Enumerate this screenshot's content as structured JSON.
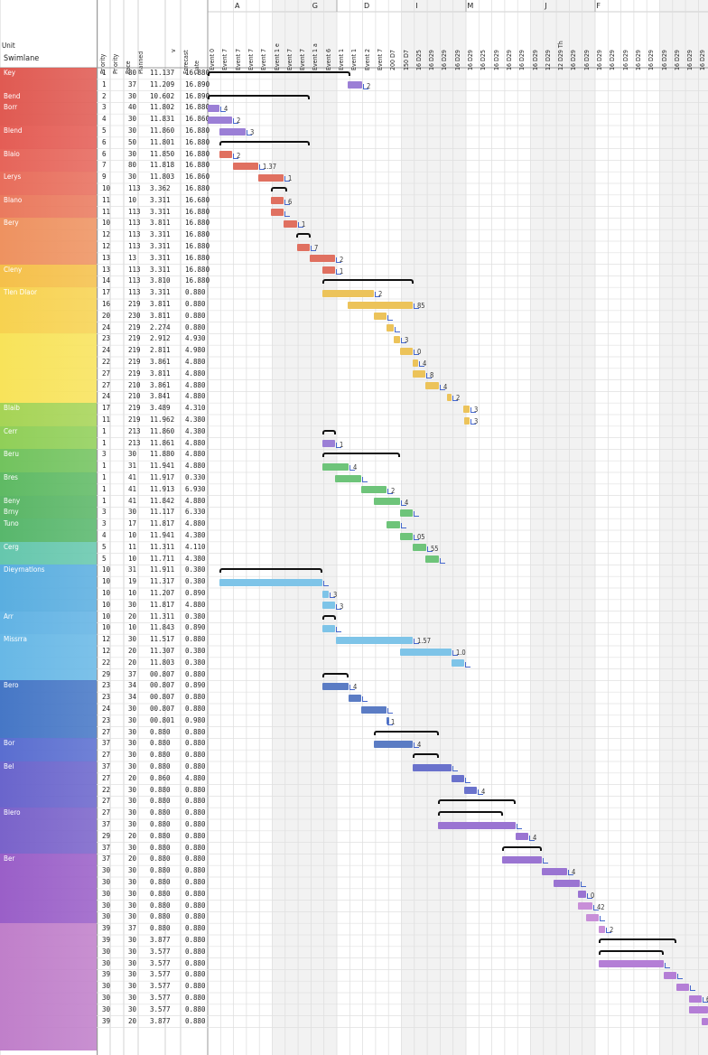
{
  "column_headers": {
    "group": "Swimlane",
    "group_top": "Unit",
    "c1": "Priority",
    "c2": "Priority",
    "c3": "Pace",
    "c3b": "Planned",
    "c4": "v",
    "c5": "Forecast",
    "c5b": "Date"
  },
  "letters": [
    "A",
    "",
    "",
    "G",
    "",
    "D",
    "",
    "I",
    "",
    "M",
    "",
    "",
    "J",
    "",
    "F",
    "",
    "",
    "",
    "",
    "",
    ""
  ],
  "timeline_labels": [
    "Event 0",
    "Event 7",
    "Event 7",
    "Event 7",
    "Event 7",
    "Event 1 e",
    "Event 7",
    "Event 7",
    "Event 1 a",
    "Event 6",
    "Event 1",
    "Event 1",
    "Event 2",
    "Event 7",
    "200 D7",
    "150 D7",
    "16 D25",
    "16 D29",
    "16 D29",
    "16 D29",
    "16 D29",
    "16 D25",
    "16 D29",
    "16 D29",
    "16 D29",
    "16 D29",
    "12 D29",
    "12 D29 Th",
    "16 D29",
    "16 D29",
    "16 D29",
    "16 D29",
    "16 D29",
    "16 D29",
    "16 D29",
    "16 D29",
    "16 D29",
    "16 D29",
    "16 D29",
    "16 D29",
    "16 D29 Fr"
  ],
  "groups": [
    {
      "label": "Key",
      "rows": 2,
      "color": "#e05a52"
    },
    {
      "label": "Bend",
      "rows": 1,
      "color": "#e05a52"
    },
    {
      "label": "Borr",
      "rows": 2,
      "color": "#e05a52"
    },
    {
      "label": "Blend",
      "rows": 2,
      "color": "#e45d55"
    },
    {
      "label": "Blaio",
      "rows": 2,
      "color": "#e6655a"
    },
    {
      "label": "Lerys",
      "rows": 2,
      "color": "#e86e5c"
    },
    {
      "label": "Blano",
      "rows": 2,
      "color": "#ea7a5e"
    },
    {
      "label": "Bery",
      "rows": 4,
      "color": "#ee9260"
    },
    {
      "label": "Cleny",
      "rows": 2,
      "color": "#f5c04a"
    },
    {
      "label": "Tlen Dlaor",
      "rows": 4,
      "color": "#f7d250"
    },
    {
      "label": "",
      "rows": 6,
      "color": "#f8e35a"
    },
    {
      "label": "Blaib",
      "rows": 2,
      "color": "#a6d456"
    },
    {
      "label": "Cerr",
      "rows": 2,
      "color": "#90cf58"
    },
    {
      "label": "Beru",
      "rows": 2,
      "color": "#72c35e"
    },
    {
      "label": "Bres",
      "rows": 2,
      "color": "#5fba64"
    },
    {
      "label": "Beny",
      "rows": 1,
      "color": "#5ab666"
    },
    {
      "label": "Brny",
      "rows": 1,
      "color": "#5ab666"
    },
    {
      "label": "Tuno",
      "rows": 2,
      "color": "#58b76c"
    },
    {
      "label": "Cerg",
      "rows": 2,
      "color": "#66c7ad"
    },
    {
      "label": "Dieyrnatlons",
      "rows": 4,
      "color": "#5aaee0"
    },
    {
      "label": "Arr",
      "rows": 2,
      "color": "#62b3e4"
    },
    {
      "label": "Missrra",
      "rows": 4,
      "color": "#68b8e6"
    },
    {
      "label": "Bero",
      "rows": 5,
      "color": "#4677c6"
    },
    {
      "label": "Bor",
      "rows": 2,
      "color": "#5a6ed0"
    },
    {
      "label": "Bel",
      "rows": 4,
      "color": "#6a65cc"
    },
    {
      "label": "Blero",
      "rows": 4,
      "color": "#7a63ca"
    },
    {
      "label": "Ber",
      "rows": 6,
      "color": "#9a5fc8"
    },
    {
      "label": "",
      "rows": 11,
      "color": "#c07fca"
    }
  ],
  "rows": [
    [
      "1",
      "80",
      "11.137",
      "16.880"
    ],
    [
      "1",
      "37",
      "11.209",
      "16.890"
    ],
    [
      "2",
      "30",
      "10.602",
      "16.890"
    ],
    [
      "3",
      "40",
      "11.802",
      "16.880"
    ],
    [
      "4",
      "30",
      "11.831",
      "16.860"
    ],
    [
      "5",
      "30",
      "11.860",
      "16.880"
    ],
    [
      "6",
      "50",
      "11.801",
      "16.880"
    ],
    [
      "6",
      "30",
      "11.850",
      "16.880"
    ],
    [
      "7",
      "80",
      "11.818",
      "16.880"
    ],
    [
      "9",
      "30",
      "11.803",
      "16.860"
    ],
    [
      "10",
      "113",
      "3.362",
      "16.880"
    ],
    [
      "11",
      "10",
      "3.311",
      "16.680"
    ],
    [
      "11",
      "113",
      "3.311",
      "16.880"
    ],
    [
      "10",
      "113",
      "3.811",
      "16.880"
    ],
    [
      "12",
      "113",
      "3.311",
      "16.880"
    ],
    [
      "12",
      "113",
      "3.311",
      "16.880"
    ],
    [
      "13",
      "13",
      "3.311",
      "16.880"
    ],
    [
      "13",
      "113",
      "3.311",
      "16.880"
    ],
    [
      "14",
      "113",
      "3.810",
      "16.880"
    ],
    [
      "17",
      "113",
      "3.311",
      "0.880"
    ],
    [
      "16",
      "219",
      "3.811",
      "0.880"
    ],
    [
      "20",
      "230",
      "3.811",
      "0.880"
    ],
    [
      "24",
      "219",
      "2.274",
      "0.880"
    ],
    [
      "23",
      "219",
      "2.912",
      "4.930"
    ],
    [
      "24",
      "219",
      "2.811",
      "4.980"
    ],
    [
      "22",
      "219",
      "3.861",
      "4.880"
    ],
    [
      "27",
      "219",
      "3.811",
      "4.880"
    ],
    [
      "27",
      "210",
      "3.861",
      "4.880"
    ],
    [
      "24",
      "210",
      "3.841",
      "4.880"
    ],
    [
      "17",
      "219",
      "3.489",
      "4.310"
    ],
    [
      "11",
      "219",
      "11.962",
      "4.380"
    ],
    [
      "1",
      "213",
      "11.860",
      "4.380"
    ],
    [
      "1",
      "213",
      "11.861",
      "4.880"
    ],
    [
      "3",
      "30",
      "11.880",
      "4.880"
    ],
    [
      "1",
      "31",
      "11.941",
      "4.880"
    ],
    [
      "1",
      "41",
      "11.917",
      "0.330"
    ],
    [
      "1",
      "41",
      "11.913",
      "6.930"
    ],
    [
      "1",
      "41",
      "11.842",
      "4.880"
    ],
    [
      "3",
      "30",
      "11.117",
      "6.330"
    ],
    [
      "3",
      "17",
      "11.817",
      "4.880"
    ],
    [
      "4",
      "10",
      "11.941",
      "4.380"
    ],
    [
      "5",
      "11",
      "11.311",
      "4.110"
    ],
    [
      "5",
      "10",
      "11.711",
      "4.380"
    ],
    [
      "10",
      "31",
      "11.911",
      "0.380"
    ],
    [
      "10",
      "19",
      "11.317",
      "0.380"
    ],
    [
      "10",
      "10",
      "11.207",
      "0.890"
    ],
    [
      "10",
      "30",
      "11.817",
      "4.880"
    ],
    [
      "10",
      "20",
      "11.311",
      "0.380"
    ],
    [
      "10",
      "10",
      "11.843",
      "0.890"
    ],
    [
      "12",
      "30",
      "11.517",
      "0.880"
    ],
    [
      "12",
      "20",
      "11.307",
      "0.380"
    ],
    [
      "22",
      "20",
      "11.803",
      "0.380"
    ],
    [
      "29",
      "37",
      "00.807",
      "0.880"
    ],
    [
      "23",
      "34",
      "00.807",
      "0.890"
    ],
    [
      "23",
      "34",
      "00.807",
      "0.880"
    ],
    [
      "24",
      "30",
      "00.807",
      "0.880"
    ],
    [
      "23",
      "30",
      "00.801",
      "0.980"
    ],
    [
      "27",
      "30",
      "0.880",
      "0.880"
    ],
    [
      "37",
      "30",
      "0.880",
      "0.880"
    ],
    [
      "27",
      "30",
      "0.880",
      "0.880"
    ],
    [
      "37",
      "30",
      "0.880",
      "0.880"
    ],
    [
      "27",
      "20",
      "0.860",
      "4.880"
    ],
    [
      "22",
      "30",
      "0.880",
      "0.880"
    ],
    [
      "27",
      "30",
      "0.880",
      "0.880"
    ],
    [
      "27",
      "30",
      "0.880",
      "0.880"
    ],
    [
      "37",
      "30",
      "0.880",
      "0.880"
    ],
    [
      "29",
      "20",
      "0.880",
      "0.880"
    ],
    [
      "37",
      "30",
      "0.880",
      "0.880"
    ],
    [
      "37",
      "20",
      "0.880",
      "0.880"
    ],
    [
      "30",
      "30",
      "0.880",
      "0.880"
    ],
    [
      "30",
      "30",
      "0.880",
      "0.880"
    ],
    [
      "30",
      "30",
      "0.880",
      "0.880"
    ],
    [
      "30",
      "30",
      "0.880",
      "0.880"
    ],
    [
      "30",
      "30",
      "0.880",
      "0.880"
    ],
    [
      "39",
      "37",
      "0.880",
      "0.880"
    ],
    [
      "39",
      "30",
      "3.877",
      "0.880"
    ],
    [
      "30",
      "30",
      "3.577",
      "0.880"
    ],
    [
      "30",
      "30",
      "3.577",
      "0.880"
    ],
    [
      "39",
      "30",
      "3.577",
      "0.880"
    ],
    [
      "30",
      "30",
      "3.577",
      "0.880"
    ],
    [
      "30",
      "30",
      "3.577",
      "0.880"
    ],
    [
      "30",
      "30",
      "3.577",
      "0.880"
    ],
    [
      "39",
      "20",
      "3.877",
      "0.880"
    ]
  ],
  "bars": [
    {
      "row": 0,
      "start": 230,
      "end": 388,
      "type": "bracket"
    },
    {
      "row": 1,
      "start": 385,
      "end": 401,
      "color": "#9b7fd6",
      "label": "2"
    },
    {
      "row": 2,
      "start": 230,
      "end": 343,
      "type": "bracket"
    },
    {
      "row": 3,
      "start": 230,
      "end": 243,
      "color": "#9b7fd6",
      "label": "4"
    },
    {
      "row": 4,
      "start": 230,
      "end": 257,
      "color": "#9b7fd6",
      "label": "2"
    },
    {
      "row": 5,
      "start": 243,
      "end": 272,
      "color": "#9b7fd6",
      "label": "3"
    },
    {
      "row": 6,
      "start": 243,
      "end": 343,
      "type": "bracket"
    },
    {
      "row": 7,
      "start": 243,
      "end": 257,
      "color": "#e07060",
      "label": "2"
    },
    {
      "row": 8,
      "start": 258,
      "end": 286,
      "color": "#e07060",
      "label": "1.37"
    },
    {
      "row": 9,
      "start": 286,
      "end": 314,
      "color": "#e07060",
      "label": "1"
    },
    {
      "row": 10,
      "start": 300,
      "end": 318,
      "type": "bracket"
    },
    {
      "row": 11,
      "start": 300,
      "end": 314,
      "color": "#e07060",
      "label": "6"
    },
    {
      "row": 12,
      "start": 300,
      "end": 314,
      "color": "#e07060",
      "label": ""
    },
    {
      "row": 13,
      "start": 314,
      "end": 329,
      "color": "#e07060",
      "label": "1"
    },
    {
      "row": 14,
      "start": 328,
      "end": 344,
      "type": "bracket"
    },
    {
      "row": 15,
      "start": 329,
      "end": 343,
      "color": "#e07060",
      "label": "7"
    },
    {
      "row": 16,
      "start": 343,
      "end": 371,
      "color": "#e07060",
      "label": "2"
    },
    {
      "row": 17,
      "start": 357,
      "end": 371,
      "color": "#e07060",
      "label": "1"
    },
    {
      "row": 18,
      "start": 357,
      "end": 458,
      "type": "bracket"
    },
    {
      "row": 19,
      "start": 357,
      "end": 414,
      "color": "#ecc35a",
      "label": "2"
    },
    {
      "row": 20,
      "start": 385,
      "end": 457,
      "color": "#ecc35a",
      "label": "85"
    },
    {
      "row": 21,
      "start": 414,
      "end": 428,
      "color": "#ecc35a",
      "label": ""
    },
    {
      "row": 22,
      "start": 428,
      "end": 436,
      "color": "#ecc35a",
      "label": ""
    },
    {
      "row": 23,
      "start": 436,
      "end": 443,
      "color": "#ecc35a",
      "label": "3"
    },
    {
      "row": 24,
      "start": 443,
      "end": 457,
      "color": "#ecc35a",
      "label": "0"
    },
    {
      "row": 25,
      "start": 457,
      "end": 463,
      "color": "#ecc35a",
      "label": "4"
    },
    {
      "row": 26,
      "start": 457,
      "end": 471,
      "color": "#ecc35a",
      "label": "8"
    },
    {
      "row": 27,
      "start": 471,
      "end": 486,
      "color": "#ecc35a",
      "label": "4"
    },
    {
      "row": 28,
      "start": 495,
      "end": 500,
      "color": "#ecc35a",
      "label": "2"
    },
    {
      "row": 29,
      "start": 513,
      "end": 520,
      "color": "#ecc35a",
      "label": "3"
    },
    {
      "row": 30,
      "start": 514,
      "end": 520,
      "color": "#ecc35a",
      "label": "3"
    },
    {
      "row": 31,
      "start": 357,
      "end": 372,
      "type": "bracket"
    },
    {
      "row": 32,
      "start": 357,
      "end": 371,
      "color": "#9b7fd6",
      "label": "1"
    },
    {
      "row": 33,
      "start": 357,
      "end": 443,
      "type": "bracket"
    },
    {
      "row": 34,
      "start": 357,
      "end": 386,
      "color": "#6ec47a",
      "label": "4"
    },
    {
      "row": 35,
      "start": 371,
      "end": 400,
      "color": "#6ec47a",
      "label": ""
    },
    {
      "row": 36,
      "start": 400,
      "end": 428,
      "color": "#6ec47a",
      "label": "2"
    },
    {
      "row": 37,
      "start": 414,
      "end": 443,
      "color": "#6ec47a",
      "label": "4"
    },
    {
      "row": 38,
      "start": 443,
      "end": 457,
      "color": "#6ec47a",
      "label": ""
    },
    {
      "row": 39,
      "start": 428,
      "end": 443,
      "color": "#6ec47a",
      "label": ""
    },
    {
      "row": 40,
      "start": 443,
      "end": 457,
      "color": "#6ec47a",
      "label": "05"
    },
    {
      "row": 41,
      "start": 457,
      "end": 472,
      "color": "#6ec47a",
      "label": "55"
    },
    {
      "row": 42,
      "start": 471,
      "end": 486,
      "color": "#6ec47a",
      "label": ""
    },
    {
      "row": 43,
      "start": 243,
      "end": 357,
      "type": "bracket"
    },
    {
      "row": 44,
      "start": 243,
      "end": 357,
      "color": "#7ec4e8",
      "label": ""
    },
    {
      "row": 45,
      "start": 357,
      "end": 364,
      "color": "#7ec4e8",
      "label": "3"
    },
    {
      "row": 46,
      "start": 357,
      "end": 371,
      "color": "#7ec4e8",
      "label": "3"
    },
    {
      "row": 47,
      "start": 357,
      "end": 372,
      "type": "bracket"
    },
    {
      "row": 48,
      "start": 357,
      "end": 371,
      "color": "#7ec4e8",
      "label": ""
    },
    {
      "row": 49,
      "start": 372,
      "end": 457,
      "color": "#7ec4e8",
      "label": "1.57"
    },
    {
      "row": 50,
      "start": 443,
      "end": 500,
      "color": "#7ec4e8",
      "label": "1.0"
    },
    {
      "row": 51,
      "start": 500,
      "end": 514,
      "color": "#7ec4e8",
      "label": ""
    },
    {
      "row": 52,
      "start": 357,
      "end": 386,
      "type": "bracket"
    },
    {
      "row": 53,
      "start": 357,
      "end": 386,
      "color": "#5b7cc4",
      "label": "4"
    },
    {
      "row": 54,
      "start": 386,
      "end": 400,
      "color": "#5b7cc4",
      "label": ""
    },
    {
      "row": 55,
      "start": 400,
      "end": 428,
      "color": "#5b7cc4",
      "label": ""
    },
    {
      "row": 56,
      "start": 428,
      "end": 428,
      "color": "#5b7cc4",
      "label": "1"
    },
    {
      "row": 57,
      "start": 414,
      "end": 486,
      "type": "bracket"
    },
    {
      "row": 58,
      "start": 414,
      "end": 457,
      "color": "#5b7cc4",
      "label": "4"
    },
    {
      "row": 59,
      "start": 457,
      "end": 486,
      "type": "bracket"
    },
    {
      "row": 60,
      "start": 457,
      "end": 500,
      "color": "#6a72cc",
      "label": ""
    },
    {
      "row": 61,
      "start": 500,
      "end": 514,
      "color": "#6a72cc",
      "label": ""
    },
    {
      "row": 62,
      "start": 514,
      "end": 528,
      "color": "#6a72cc",
      "label": "4"
    },
    {
      "row": 63,
      "start": 485,
      "end": 571,
      "type": "bracket"
    },
    {
      "row": 64,
      "start": 485,
      "end": 557,
      "type": "bracket"
    },
    {
      "row": 65,
      "start": 485,
      "end": 571,
      "color": "#9a74d2",
      "label": ""
    },
    {
      "row": 66,
      "start": 571,
      "end": 585,
      "color": "#9a74d2",
      "label": "4"
    },
    {
      "row": 67,
      "start": 556,
      "end": 600,
      "type": "bracket"
    },
    {
      "row": 68,
      "start": 556,
      "end": 600,
      "color": "#9a74d2",
      "label": ""
    },
    {
      "row": 69,
      "start": 600,
      "end": 628,
      "color": "#9a74d2",
      "label": "4"
    },
    {
      "row": 70,
      "start": 613,
      "end": 642,
      "color": "#9a74d2",
      "label": ""
    },
    {
      "row": 71,
      "start": 640,
      "end": 649,
      "color": "#9a74d2",
      "label": "0"
    },
    {
      "row": 72,
      "start": 640,
      "end": 656,
      "color": "#c88fd8",
      "label": "42"
    },
    {
      "row": 73,
      "start": 649,
      "end": 663,
      "color": "#c88fd8",
      "label": ""
    },
    {
      "row": 74,
      "start": 663,
      "end": 670,
      "color": "#c88fd8",
      "label": "2"
    },
    {
      "row": 75,
      "start": 663,
      "end": 749,
      "type": "bracket"
    },
    {
      "row": 76,
      "start": 663,
      "end": 735,
      "type": "bracket"
    },
    {
      "row": 77,
      "start": 663,
      "end": 735,
      "color": "#b47ed6",
      "label": ""
    },
    {
      "row": 78,
      "start": 735,
      "end": 749,
      "color": "#b47ed6",
      "label": ""
    },
    {
      "row": 79,
      "start": 749,
      "end": 763,
      "color": "#b47ed6",
      "label": ""
    },
    {
      "row": 80,
      "start": 763,
      "end": 777,
      "color": "#b47ed6",
      "label": "6"
    },
    {
      "row": 81,
      "start": 763,
      "end": 784,
      "color": "#b47ed6",
      "label": ""
    },
    {
      "row": 82,
      "start": 777,
      "end": 784,
      "color": "#b47ed6",
      "label": ""
    }
  ]
}
